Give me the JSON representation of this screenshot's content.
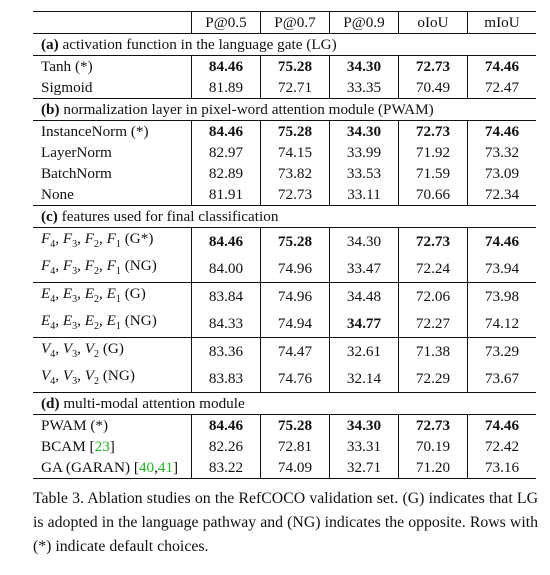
{
  "header": [
    "",
    "P@0.5",
    "P@0.7",
    "P@0.9",
    "oIoU",
    "mIoU"
  ],
  "sections": [
    {
      "label": "(a)",
      "title": "activation function in the language gate (LG)",
      "groups": [
        [
          {
            "name": "Tanh (*)",
            "values": [
              "84.46",
              "75.28",
              "34.30",
              "72.73",
              "74.46"
            ],
            "bold": [
              true,
              true,
              true,
              true,
              true
            ]
          },
          {
            "name": "Sigmoid",
            "values": [
              "81.89",
              "72.71",
              "33.35",
              "70.49",
              "72.47"
            ],
            "bold": [
              false,
              false,
              false,
              false,
              false
            ]
          }
        ]
      ]
    },
    {
      "label": "(b)",
      "title": "normalization layer in pixel-word attention module (PWAM)",
      "groups": [
        [
          {
            "name": "InstanceNorm (*)",
            "values": [
              "84.46",
              "75.28",
              "34.30",
              "72.73",
              "74.46"
            ],
            "bold": [
              true,
              true,
              true,
              true,
              true
            ]
          },
          {
            "name": "LayerNorm",
            "values": [
              "82.97",
              "74.15",
              "33.99",
              "71.92",
              "73.32"
            ],
            "bold": [
              false,
              false,
              false,
              false,
              false
            ]
          },
          {
            "name": "BatchNorm",
            "values": [
              "82.89",
              "73.82",
              "33.53",
              "71.59",
              "73.09"
            ],
            "bold": [
              false,
              false,
              false,
              false,
              false
            ]
          },
          {
            "name": "None",
            "values": [
              "81.91",
              "72.73",
              "33.11",
              "70.66",
              "72.34"
            ],
            "bold": [
              false,
              false,
              false,
              false,
              false
            ]
          }
        ]
      ]
    },
    {
      "label": "(c)",
      "title": "features used for final classification",
      "groups": [
        [
          {
            "name": "F4, F3, F2, F1 (G*)",
            "values": [
              "84.46",
              "75.28",
              "34.30",
              "72.73",
              "74.46"
            ],
            "bold": [
              true,
              true,
              false,
              true,
              true
            ]
          },
          {
            "name": "F4, F3, F2, F1 (NG)",
            "values": [
              "84.00",
              "74.96",
              "33.47",
              "72.24",
              "73.94"
            ],
            "bold": [
              false,
              false,
              false,
              false,
              false
            ]
          }
        ],
        [
          {
            "name": "E4, E3, E2, E1 (G)",
            "values": [
              "83.84",
              "74.96",
              "34.48",
              "72.06",
              "73.98"
            ],
            "bold": [
              false,
              false,
              false,
              false,
              false
            ]
          },
          {
            "name": "E4, E3, E2, E1 (NG)",
            "values": [
              "84.33",
              "74.94",
              "34.77",
              "72.27",
              "74.12"
            ],
            "bold": [
              false,
              false,
              true,
              false,
              false
            ]
          }
        ],
        [
          {
            "name": "V4, V3, V2 (G)",
            "values": [
              "83.36",
              "74.47",
              "32.61",
              "71.38",
              "73.29"
            ],
            "bold": [
              false,
              false,
              false,
              false,
              false
            ]
          },
          {
            "name": "V4, V3, V2 (NG)",
            "values": [
              "83.83",
              "74.76",
              "32.14",
              "72.29",
              "73.67"
            ],
            "bold": [
              false,
              false,
              false,
              false,
              false
            ]
          }
        ]
      ]
    },
    {
      "label": "(d)",
      "title": "multi-modal attention module",
      "groups": [
        [
          {
            "name": "PWAM (*)",
            "values": [
              "84.46",
              "75.28",
              "34.30",
              "72.73",
              "74.46"
            ],
            "bold": [
              true,
              true,
              true,
              true,
              true
            ]
          },
          {
            "name": "BCAM [23]",
            "values": [
              "82.26",
              "72.81",
              "33.31",
              "70.19",
              "72.42"
            ],
            "bold": [
              false,
              false,
              false,
              false,
              false
            ]
          },
          {
            "name": "GA (GARAN) [40, 41]",
            "values": [
              "83.22",
              "74.09",
              "32.71",
              "71.20",
              "73.16"
            ],
            "bold": [
              false,
              false,
              false,
              false,
              false
            ]
          }
        ]
      ]
    }
  ],
  "caption": "Table 3. Ablation studies on the RefCOCO validation set. (G) indicates that LG is adopted in the language pathway and (NG) indicates the opposite. Rows with (*) indicate default choices."
}
